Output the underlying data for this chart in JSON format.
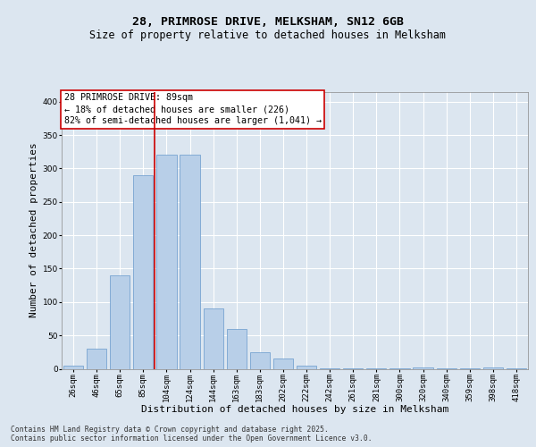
{
  "title1": "28, PRIMROSE DRIVE, MELKSHAM, SN12 6GB",
  "title2": "Size of property relative to detached houses in Melksham",
  "xlabel": "Distribution of detached houses by size in Melksham",
  "ylabel": "Number of detached properties",
  "footnote": "Contains HM Land Registry data © Crown copyright and database right 2025.\nContains public sector information licensed under the Open Government Licence v3.0.",
  "bins": [
    "26sqm",
    "46sqm",
    "65sqm",
    "85sqm",
    "104sqm",
    "124sqm",
    "144sqm",
    "163sqm",
    "183sqm",
    "202sqm",
    "222sqm",
    "242sqm",
    "261sqm",
    "281sqm",
    "300sqm",
    "320sqm",
    "340sqm",
    "359sqm",
    "398sqm",
    "418sqm"
  ],
  "values": [
    5,
    30,
    140,
    290,
    320,
    320,
    90,
    60,
    25,
    15,
    5,
    1,
    1,
    1,
    1,
    2,
    1,
    1,
    2,
    1
  ],
  "bar_color": "#b8cfe8",
  "bar_edge_color": "#6699cc",
  "bar_edge_width": 0.5,
  "vline_x": 3.5,
  "vline_color": "#cc0000",
  "annotation_text": "28 PRIMROSE DRIVE: 89sqm\n← 18% of detached houses are smaller (226)\n82% of semi-detached houses are larger (1,041) →",
  "annotation_box_color": "white",
  "annotation_box_edge": "#cc0000",
  "ylim": [
    0,
    415
  ],
  "yticks": [
    0,
    50,
    100,
    150,
    200,
    250,
    300,
    350,
    400
  ],
  "bg_color": "#dce6f0",
  "plot_bg_color": "#dce6f0",
  "grid_color": "white",
  "title_fontsize": 9.5,
  "subtitle_fontsize": 8.5,
  "axis_label_fontsize": 8,
  "tick_fontsize": 6.5,
  "annot_fontsize": 7.2,
  "footnote_fontsize": 5.8
}
